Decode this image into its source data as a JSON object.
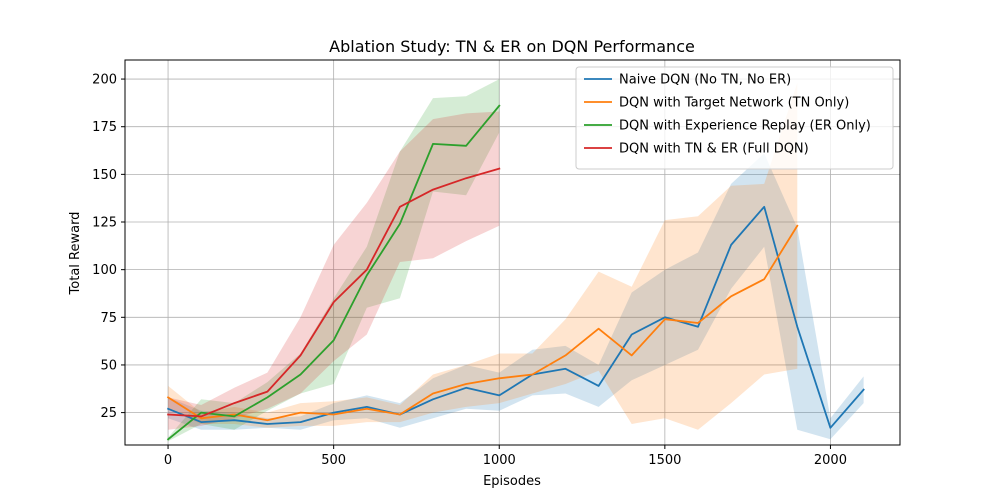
{
  "chart_data": {
    "type": "line",
    "title": "Ablation Study: TN & ER on DQN Performance",
    "xlabel": "Episodes",
    "ylabel": "Total Reward",
    "xlim": [
      -130,
      2210
    ],
    "ylim": [
      8,
      210
    ],
    "xticks": [
      0,
      500,
      1000,
      1500,
      2000
    ],
    "yticks": [
      25,
      50,
      75,
      100,
      125,
      150,
      175,
      200
    ],
    "grid": true,
    "legend_position": "top-right",
    "series": [
      {
        "name": "Naive DQN (No TN, No ER)",
        "color": "#1f77b4",
        "x": [
          0,
          100,
          200,
          300,
          400,
          500,
          600,
          700,
          800,
          900,
          1000,
          1100,
          1200,
          1300,
          1400,
          1500,
          1600,
          1700,
          1800,
          1900,
          2000,
          2100
        ],
        "y": [
          27,
          20,
          21,
          19,
          20,
          25,
          28,
          24,
          32,
          38,
          34,
          45,
          48,
          39,
          66,
          75,
          70,
          113,
          133,
          70,
          17,
          37
        ],
        "lower": [
          22,
          16,
          16,
          17,
          16,
          21,
          22,
          17,
          22,
          27,
          26,
          34,
          35,
          28,
          42,
          50,
          58,
          90,
          112,
          16,
          11,
          30
        ],
        "upper": [
          33,
          26,
          25,
          22,
          23,
          30,
          34,
          30,
          43,
          50,
          46,
          58,
          60,
          50,
          88,
          100,
          109,
          145,
          161,
          122,
          22,
          44
        ]
      },
      {
        "name": "DQN with Target Network (TN Only)",
        "color": "#ff7f0e",
        "x": [
          0,
          100,
          200,
          300,
          400,
          500,
          600,
          700,
          800,
          900,
          1000,
          1100,
          1200,
          1300,
          1400,
          1500,
          1600,
          1700,
          1800,
          1900
        ],
        "y": [
          33,
          22,
          24,
          21,
          25,
          24,
          27,
          24,
          35,
          40,
          43,
          45,
          55,
          69,
          55,
          74,
          72,
          86,
          95,
          123
        ],
        "lower": [
          27,
          19,
          19,
          17,
          18,
          18,
          20,
          20,
          25,
          28,
          30,
          35,
          40,
          47,
          19,
          22,
          16,
          30,
          45,
          48
        ],
        "upper": [
          39,
          25,
          28,
          25,
          30,
          31,
          33,
          29,
          45,
          50,
          56,
          56,
          74,
          99,
          91,
          126,
          128,
          144,
          145,
          198
        ]
      },
      {
        "name": "DQN with Experience Replay (ER Only)",
        "color": "#2ca02c",
        "x": [
          0,
          100,
          200,
          300,
          400,
          500,
          600,
          700,
          800,
          900,
          1000
        ],
        "y": [
          11,
          25,
          23,
          33,
          45,
          63,
          97,
          124,
          166,
          165,
          186
        ],
        "lower": [
          10,
          19,
          16,
          26,
          35,
          40,
          80,
          85,
          141,
          139,
          172
        ],
        "upper": [
          12,
          32,
          30,
          41,
          56,
          85,
          112,
          162,
          190,
          191,
          200
        ]
      },
      {
        "name": "DQN with TN & ER (Full DQN)",
        "color": "#d62728",
        "x": [
          0,
          100,
          200,
          300,
          400,
          500,
          600,
          700,
          800,
          900,
          1000
        ],
        "y": [
          24,
          23,
          30,
          36,
          55,
          83,
          100,
          133,
          142,
          148,
          153
        ],
        "lower": [
          16,
          18,
          22,
          27,
          35,
          52,
          66,
          104,
          106,
          115,
          123
        ],
        "upper": [
          33,
          29,
          38,
          46,
          75,
          113,
          135,
          162,
          179,
          182,
          183
        ]
      }
    ]
  }
}
